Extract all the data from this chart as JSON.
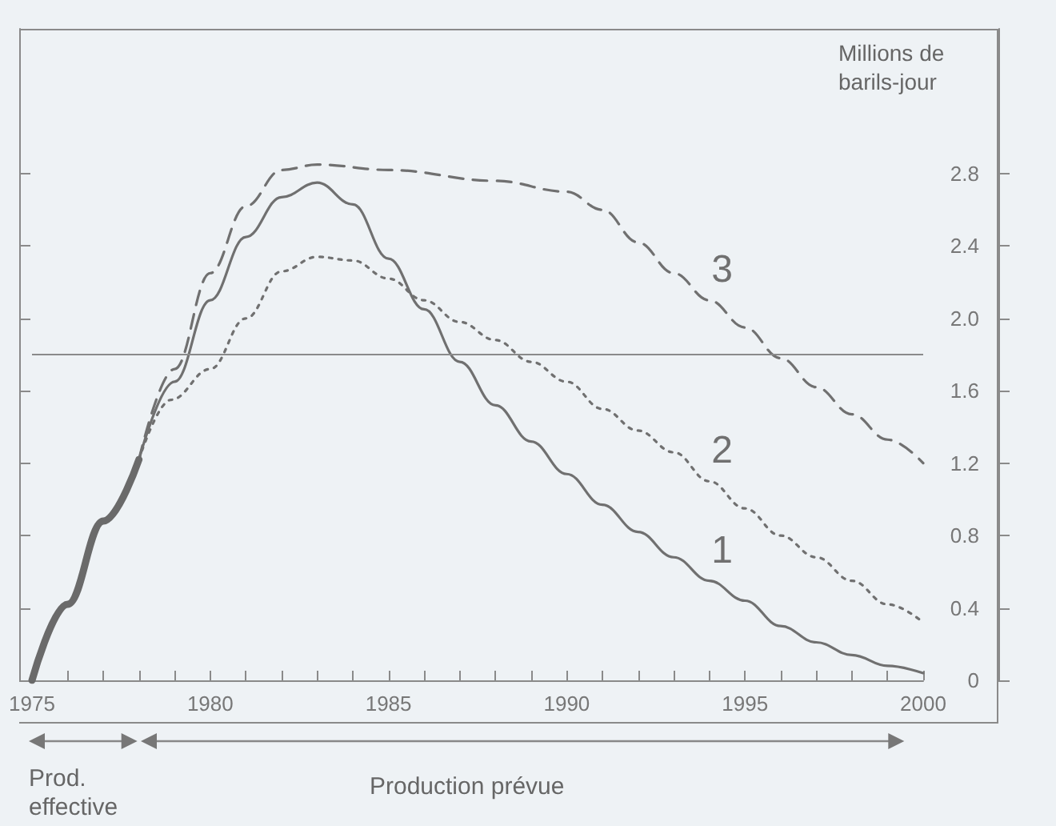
{
  "chart_data": {
    "type": "line",
    "ylabel": "Millions de barils-jour",
    "annotations": [
      "Prod. effective",
      "Production prévue"
    ],
    "xlim": [
      1975,
      2000
    ],
    "xticks": [
      1975,
      {
        "value": 1976,
        "label": null
      },
      {
        "value": 1977,
        "label": null
      },
      {
        "value": 1978,
        "label": null
      },
      {
        "value": 1979,
        "label": null
      },
      1980,
      {
        "value": 1981,
        "label": null
      },
      {
        "value": 1982,
        "label": null
      },
      {
        "value": 1983,
        "label": null
      },
      {
        "value": 1984,
        "label": null
      },
      1985,
      {
        "value": 1986,
        "label": null
      },
      {
        "value": 1987,
        "label": null
      },
      {
        "value": 1988,
        "label": null
      },
      {
        "value": 1989,
        "label": null
      },
      1990,
      {
        "value": 1991,
        "label": null
      },
      {
        "value": 1992,
        "label": null
      },
      {
        "value": 1993,
        "label": null
      },
      {
        "value": 1994,
        "label": null
      },
      1995,
      {
        "value": 1996,
        "label": null
      },
      {
        "value": 1997,
        "label": null
      },
      {
        "value": 1998,
        "label": null
      },
      {
        "value": 1999,
        "label": null
      },
      2000
    ],
    "ylim": [
      0,
      3.6
    ],
    "yticks": [
      0,
      0.4,
      0.8,
      1.2,
      1.6,
      {
        "value": 2.0,
        "label": "2.0"
      },
      2.4,
      2.8
    ],
    "grid": false,
    "legend": false,
    "marker": "none",
    "ref_lines": [
      {
        "axis": "y",
        "value": 1.8,
        "color": "#8a8a8a",
        "line_style": "solid"
      }
    ],
    "series": [
      {
        "color": "#6a6a6a",
        "line_style": "solid",
        "x": [
          1975,
          1976,
          1977,
          1978
        ],
        "values": [
          0,
          0.42,
          0.88,
          1.22
        ]
      },
      {
        "name": "1",
        "color": "#707070",
        "line_style": "solid",
        "x": [
          1978,
          1979,
          1980,
          1981,
          1982,
          1983,
          1984,
          1985,
          1986,
          1987,
          1988,
          1989,
          1990,
          1991,
          1992,
          1993,
          1994,
          1995,
          1996,
          1997,
          1998,
          1999,
          2000
        ],
        "values": [
          1.22,
          1.65,
          2.1,
          2.45,
          2.67,
          2.75,
          2.63,
          2.33,
          2.05,
          1.76,
          1.52,
          1.32,
          1.14,
          0.97,
          0.82,
          0.68,
          0.55,
          0.44,
          0.3,
          0.21,
          0.14,
          0.08,
          0.04
        ]
      },
      {
        "name": "2",
        "color": "#707070",
        "line_style": "dotted",
        "x": [
          1978,
          1978.9,
          1980,
          1981,
          1982,
          1983,
          1984,
          1985,
          1986,
          1987,
          1988,
          1989,
          1990,
          1991,
          1992,
          1993,
          1994,
          1995,
          1996,
          1997,
          1998,
          1999,
          2000
        ],
        "values": [
          1.22,
          1.55,
          1.72,
          2.0,
          2.26,
          2.34,
          2.32,
          2.22,
          2.1,
          1.98,
          1.88,
          1.76,
          1.65,
          1.5,
          1.38,
          1.26,
          1.1,
          0.95,
          0.8,
          0.68,
          0.55,
          0.42,
          0.32
        ]
      },
      {
        "name": "3",
        "color": "#707070",
        "line_style": "dashed",
        "x": [
          1978,
          1979,
          1980,
          1981,
          1982,
          1983,
          1985,
          1988,
          1990,
          1991,
          1992,
          1993,
          1994,
          1995,
          1996,
          1997,
          1998,
          1999,
          2000
        ],
        "values": [
          1.22,
          1.72,
          2.25,
          2.62,
          2.82,
          2.85,
          2.82,
          2.76,
          2.7,
          2.6,
          2.42,
          2.25,
          2.1,
          1.95,
          1.78,
          1.62,
          1.47,
          1.33,
          1.2
        ]
      }
    ]
  }
}
